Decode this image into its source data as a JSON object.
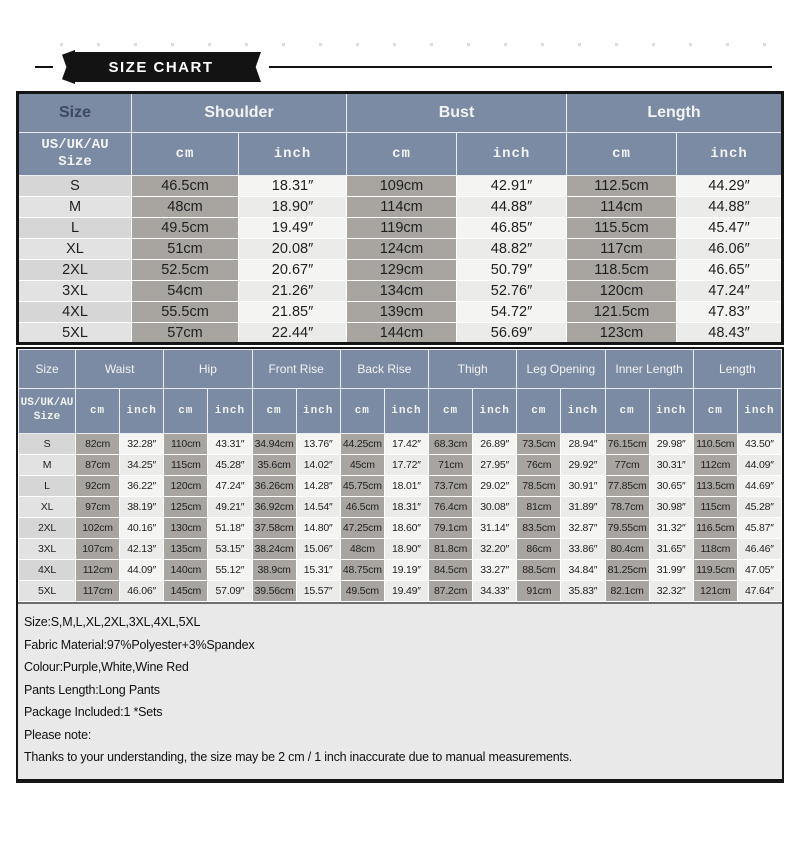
{
  "banner": {
    "title": "SIZE CHART"
  },
  "top_table": {
    "col_groups": [
      "Size",
      "Shoulder",
      "Bust",
      "Length"
    ],
    "sub1": "US/UK/AU",
    "sub2": "Size",
    "unit_cm": "cm",
    "unit_inch": "inch",
    "rows": [
      {
        "size": "S",
        "cells": [
          "46.5cm",
          "18.31″",
          "109cm",
          "42.91″",
          "112.5cm",
          "44.29″"
        ]
      },
      {
        "size": "M",
        "cells": [
          "48cm",
          "18.90″",
          "114cm",
          "44.88″",
          "114cm",
          "44.88″"
        ]
      },
      {
        "size": "L",
        "cells": [
          "49.5cm",
          "19.49″",
          "119cm",
          "46.85″",
          "115.5cm",
          "45.47″"
        ]
      },
      {
        "size": "XL",
        "cells": [
          "51cm",
          "20.08″",
          "124cm",
          "48.82″",
          "117cm",
          "46.06″"
        ]
      },
      {
        "size": "2XL",
        "cells": [
          "52.5cm",
          "20.67″",
          "129cm",
          "50.79″",
          "118.5cm",
          "46.65″"
        ]
      },
      {
        "size": "3XL",
        "cells": [
          "54cm",
          "21.26″",
          "134cm",
          "52.76″",
          "120cm",
          "47.24″"
        ]
      },
      {
        "size": "4XL",
        "cells": [
          "55.5cm",
          "21.85″",
          "139cm",
          "54.72″",
          "121.5cm",
          "47.83″"
        ]
      },
      {
        "size": "5XL",
        "cells": [
          "57cm",
          "22.44″",
          "144cm",
          "56.69″",
          "123cm",
          "48.43″"
        ]
      }
    ]
  },
  "bottom_table": {
    "col_groups": [
      "Size",
      "Waist",
      "Hip",
      "Front Rise",
      "Back Rise",
      "Thigh",
      "Leg Opening",
      "Inner Length",
      "Length"
    ],
    "sub1": "US/UK/AU",
    "sub2": "Size",
    "unit_cm": "cm",
    "unit_inch": "inch",
    "rows": [
      {
        "size": "S",
        "cells": [
          "82cm",
          "32.28″",
          "110cm",
          "43.31″",
          "34.94cm",
          "13.76″",
          "44.25cm",
          "17.42″",
          "68.3cm",
          "26.89″",
          "73.5cm",
          "28.94″",
          "76.15cm",
          "29.98″",
          "110.5cm",
          "43.50″"
        ]
      },
      {
        "size": "M",
        "cells": [
          "87cm",
          "34.25″",
          "115cm",
          "45.28″",
          "35.6cm",
          "14.02″",
          "45cm",
          "17.72″",
          "71cm",
          "27.95″",
          "76cm",
          "29.92″",
          "77cm",
          "30.31″",
          "112cm",
          "44.09″"
        ]
      },
      {
        "size": "L",
        "cells": [
          "92cm",
          "36.22″",
          "120cm",
          "47.24″",
          "36.26cm",
          "14.28″",
          "45.75cm",
          "18.01″",
          "73.7cm",
          "29.02″",
          "78.5cm",
          "30.91″",
          "77.85cm",
          "30.65″",
          "113.5cm",
          "44.69″"
        ]
      },
      {
        "size": "XL",
        "cells": [
          "97cm",
          "38.19″",
          "125cm",
          "49.21″",
          "36.92cm",
          "14.54″",
          "46.5cm",
          "18.31″",
          "76.4cm",
          "30.08″",
          "81cm",
          "31.89″",
          "78.7cm",
          "30.98″",
          "115cm",
          "45.28″"
        ]
      },
      {
        "size": "2XL",
        "cells": [
          "102cm",
          "40.16″",
          "130cm",
          "51.18″",
          "37.58cm",
          "14.80″",
          "47.25cm",
          "18.60″",
          "79.1cm",
          "31.14″",
          "83.5cm",
          "32.87″",
          "79.55cm",
          "31.32″",
          "116.5cm",
          "45.87″"
        ]
      },
      {
        "size": "3XL",
        "cells": [
          "107cm",
          "42.13″",
          "135cm",
          "53.15″",
          "38.24cm",
          "15.06″",
          "48cm",
          "18.90″",
          "81.8cm",
          "32.20″",
          "86cm",
          "33.86″",
          "80.4cm",
          "31.65″",
          "118cm",
          "46.46″"
        ]
      },
      {
        "size": "4XL",
        "cells": [
          "112cm",
          "44.09″",
          "140cm",
          "55.12″",
          "38.9cm",
          "15.31″",
          "48.75cm",
          "19.19″",
          "84.5cm",
          "33.27″",
          "88.5cm",
          "34.84″",
          "81.25cm",
          "31.99″",
          "119.5cm",
          "47.05″"
        ]
      },
      {
        "size": "5XL",
        "cells": [
          "117cm",
          "46.06″",
          "145cm",
          "57.09″",
          "39.56cm",
          "15.57″",
          "49.5cm",
          "19.49″",
          "87.2cm",
          "34.33″",
          "91cm",
          "35.83″",
          "82.1cm",
          "32.32″",
          "121cm",
          "47.64″"
        ]
      }
    ]
  },
  "footer": {
    "lines": [
      "Size:S,M,L,XL,2XL,3XL,4XL,5XL",
      "Fabric Material:97%Polyester+3%Spandex",
      "Colour:Purple,White,Wine Red",
      "Pants Length:Long Pants",
      "Package Included:1 *Sets",
      "Please note:",
      "Thanks to your understanding, the size may be 2 cm / 1 inch inaccurate due to manual measurements."
    ]
  },
  "colors": {
    "header_blue": "#7b8ba3",
    "cm_cell_gray": "#a8a5a1",
    "inch_cell_light": "#f4f4f2",
    "size_cell_gray": "#d6d6d6",
    "banner_black": "#131313",
    "notes_bg": "#e9e9e9"
  }
}
